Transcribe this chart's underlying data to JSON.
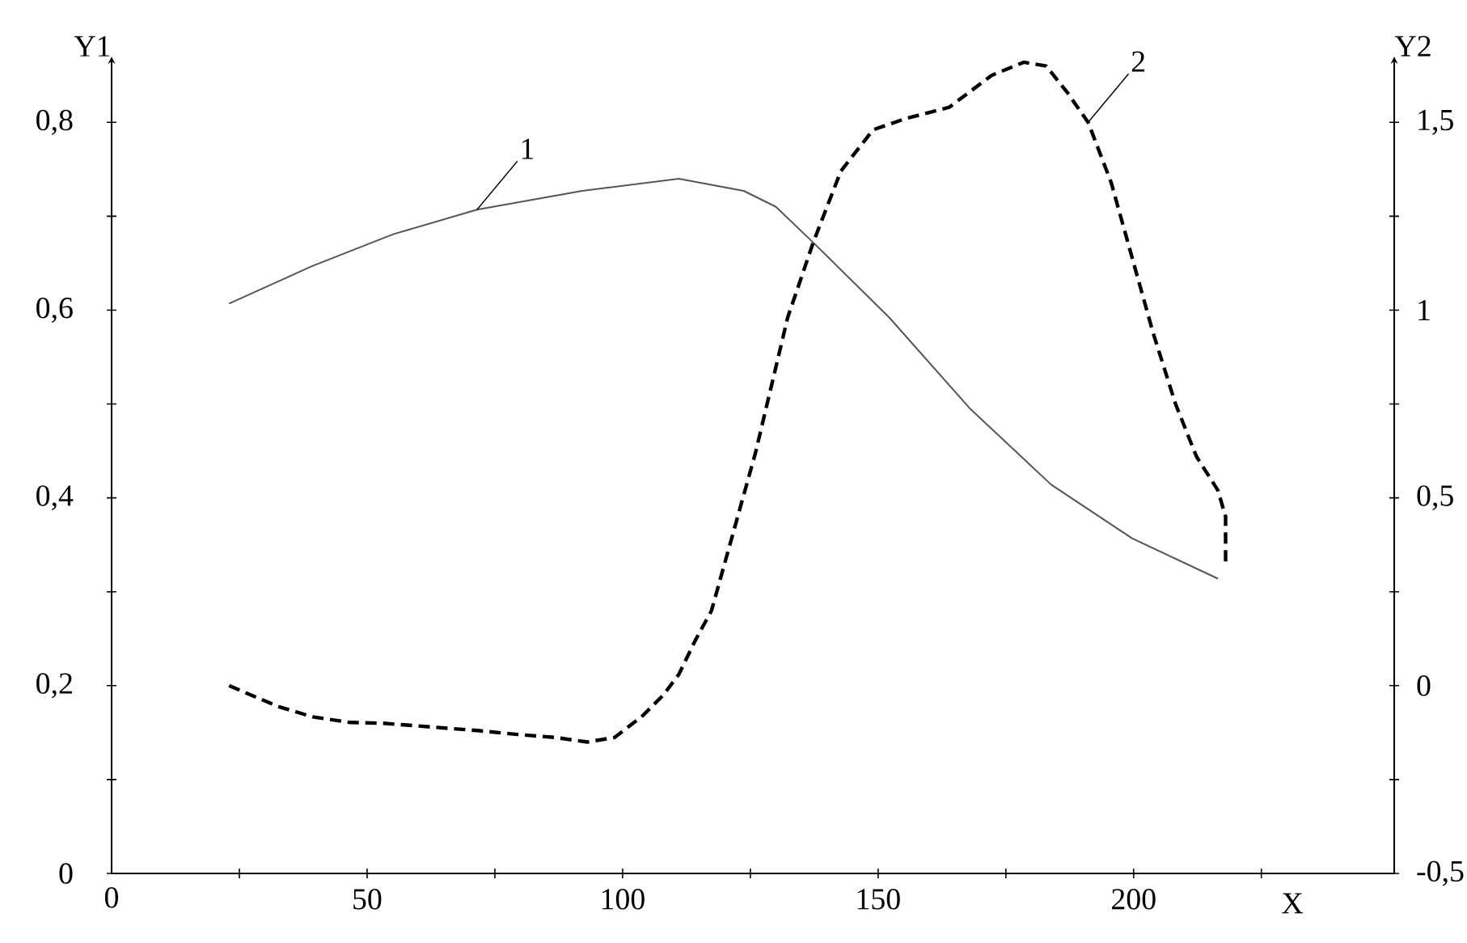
{
  "chart_data": {
    "type": "line",
    "xlabel": "X",
    "ylabel": "Y1",
    "y2label": "Y2",
    "xlim": [
      0,
      251
    ],
    "ylim": [
      0,
      0.87
    ],
    "y2lim": [
      -0.5,
      1.675
    ],
    "xticks": [
      0,
      {
        "value": 25,
        "label": null
      },
      50,
      {
        "value": 75,
        "label": null
      },
      100,
      {
        "value": 125,
        "label": null
      },
      150,
      {
        "value": 175,
        "label": null
      },
      200,
      {
        "value": 225,
        "label": null
      }
    ],
    "yticks": [
      0,
      {
        "value": 0.1,
        "label": null
      },
      {
        "value": 0.2,
        "label": "0,2"
      },
      {
        "value": 0.3,
        "label": null
      },
      {
        "value": 0.4,
        "label": "0,4"
      },
      {
        "value": 0.5,
        "label": null
      },
      {
        "value": 0.6,
        "label": "0,6"
      },
      {
        "value": 0.7,
        "label": null
      },
      {
        "value": 0.8,
        "label": "0,8"
      }
    ],
    "y2ticks": [
      {
        "value": -0.5,
        "label": "-0,5"
      },
      {
        "value": -0.25,
        "label": null
      },
      0,
      {
        "value": 0.25,
        "label": null
      },
      {
        "value": 0.5,
        "label": "0,5"
      },
      {
        "value": 0.75,
        "label": null
      },
      1,
      {
        "value": 1.25,
        "label": null
      },
      {
        "value": 1.5,
        "label": "1,5"
      }
    ],
    "series": [
      {
        "color": "#555555",
        "line_style": "solid",
        "x": [
          23,
          39.3,
          55.2,
          71.5,
          92.1,
          111,
          123.7,
          130,
          137.3,
          152.2,
          168,
          183.9,
          199.7,
          216.5
        ],
        "values": [
          0.607,
          0.647,
          0.681,
          0.707,
          0.727,
          0.74,
          0.727,
          0.71,
          0.672,
          0.592,
          0.495,
          0.414,
          0.357,
          0.314
        ]
      },
      {
        "color": "#000000",
        "line_style": "dashed",
        "axis": "y2",
        "x": [
          23,
          32.5,
          39.3,
          46.7,
          53,
          62.6,
          72,
          79.4,
          86.8,
          93.1,
          98.4,
          103.7,
          107.9,
          111,
          114.2,
          117.4,
          126,
          132.3,
          137.3,
          142.7,
          149,
          155.4,
          163.9,
          172.2,
          178.5,
          182.9,
          187,
          191.1,
          195.6,
          199.7,
          203.8,
          208.2,
          212.3,
          216.5,
          218,
          218
        ],
        "values": [
          0.0,
          -0.055,
          -0.083,
          -0.098,
          -0.1,
          -0.11,
          -0.12,
          -0.13,
          -0.138,
          -0.15,
          -0.138,
          -0.083,
          -0.026,
          0.03,
          0.12,
          0.2,
          0.62,
          0.98,
          1.18,
          1.37,
          1.48,
          1.51,
          1.54,
          1.625,
          1.66,
          1.65,
          1.58,
          1.5,
          1.34,
          1.14,
          0.94,
          0.75,
          0.61,
          0.52,
          0.45,
          0.32
        ]
      }
    ],
    "annotations": [
      {
        "text": "1",
        "x": 71.5,
        "y": 0.707
      },
      {
        "text": "2",
        "x": 191.1,
        "y": 0.8
      }
    ],
    "grid": false,
    "marker": "none"
  }
}
